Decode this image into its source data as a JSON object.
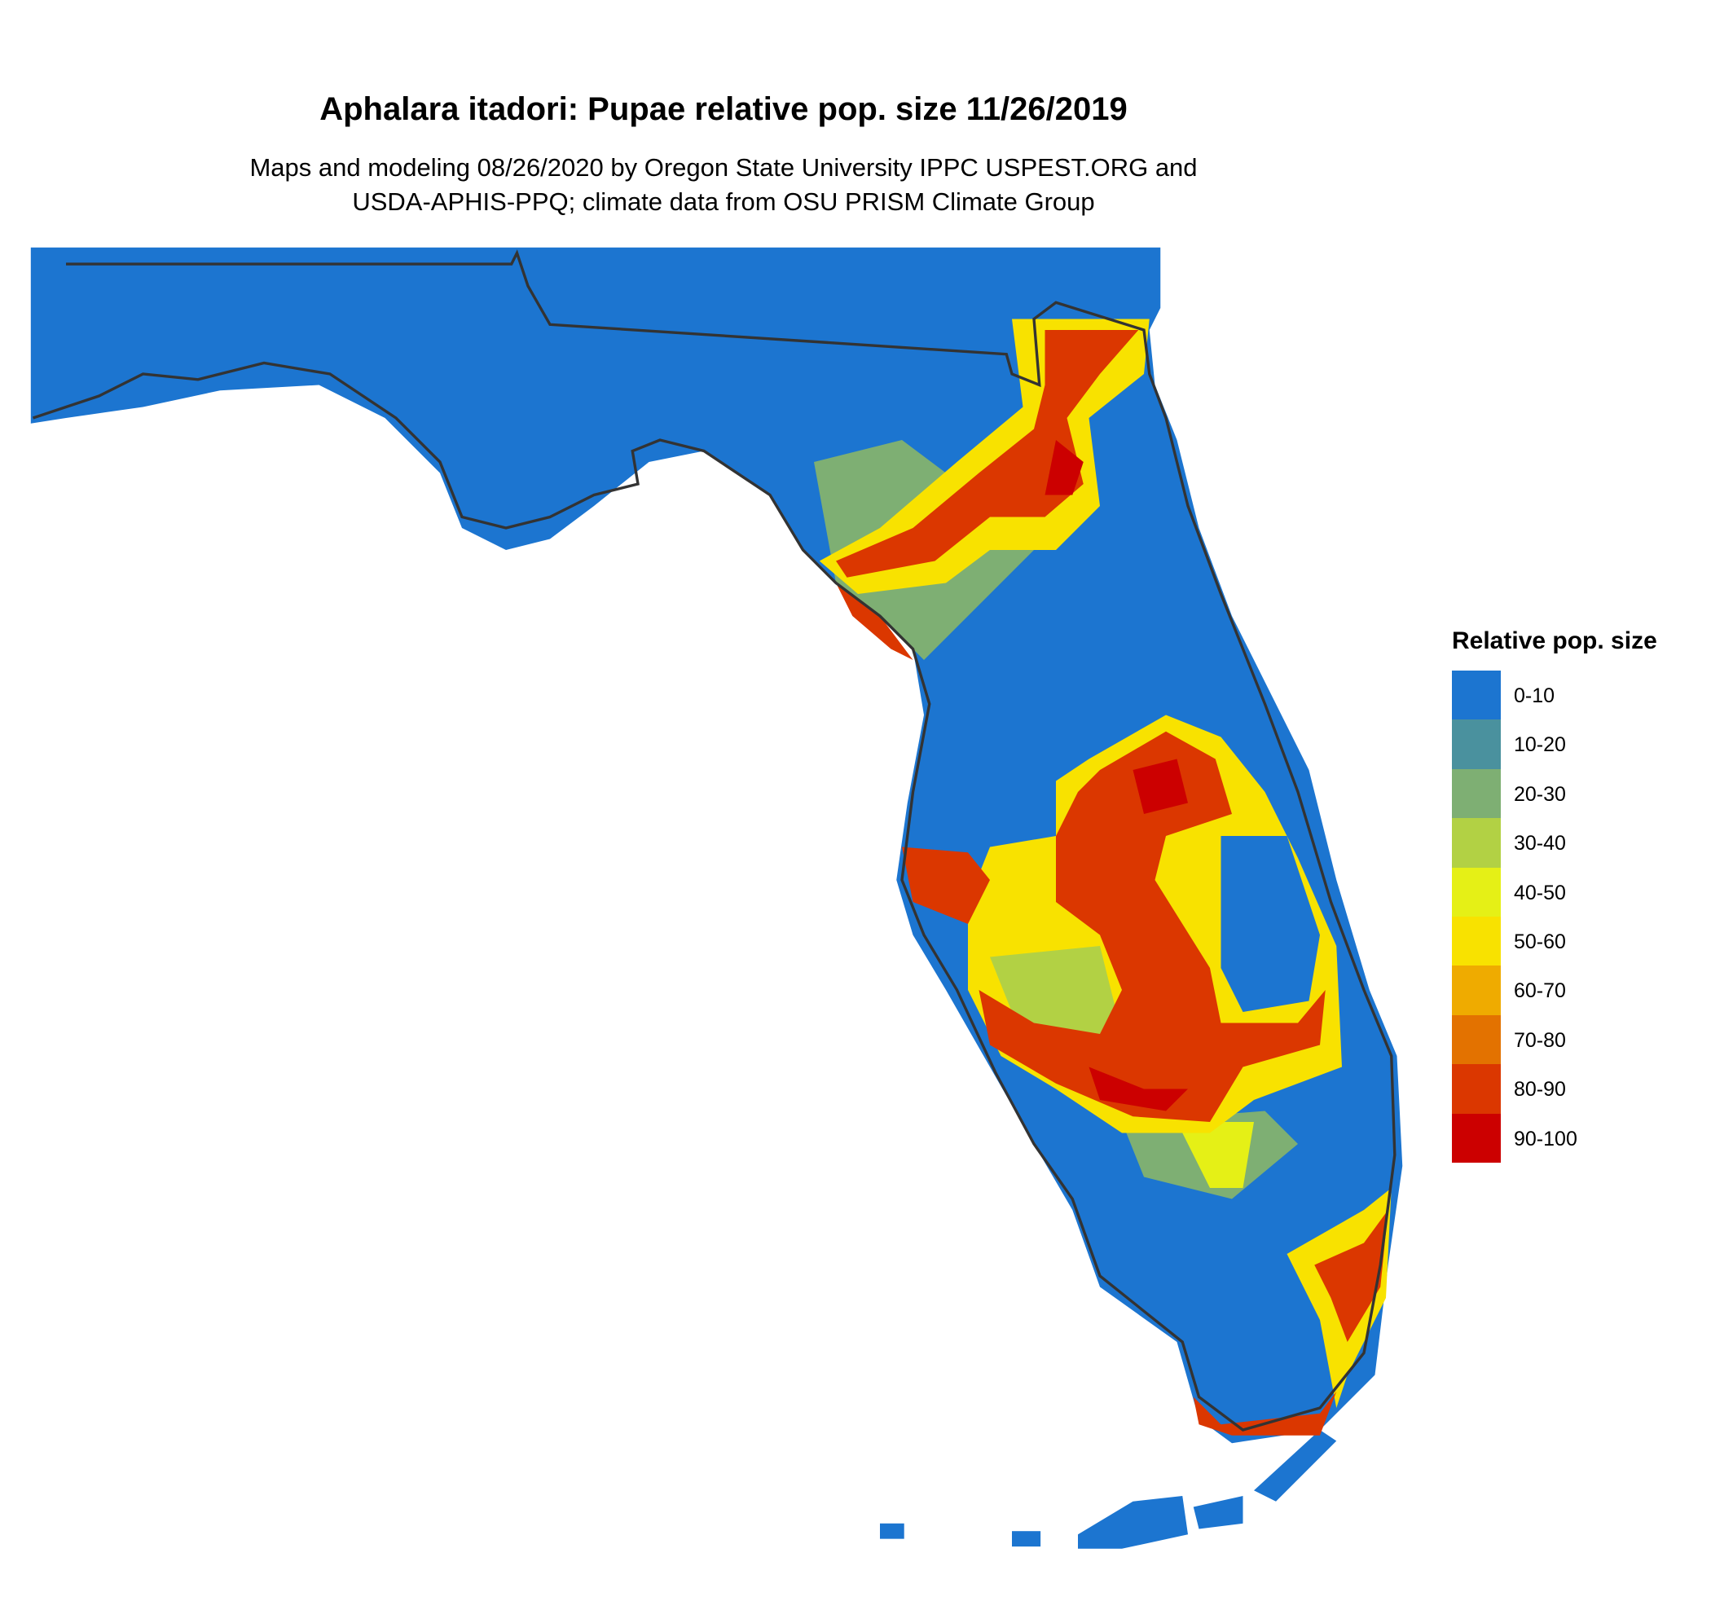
{
  "title": "Aphalara itadori: Pupae relative pop. size 11/26/2019",
  "subtitle_lines": [
    "Maps and modeling 08/26/2020 by Oregon State University IPPC USPEST.ORG and",
    "USDA-APHIS-PPQ; climate data from OSU PRISM Climate Group"
  ],
  "legend": {
    "title": "Relative pop. size",
    "items": [
      {
        "label": "0-10",
        "color": "#1C75D0"
      },
      {
        "label": "10-20",
        "color": "#4A919E"
      },
      {
        "label": "20-30",
        "color": "#7EAF73"
      },
      {
        "label": "30-40",
        "color": "#B2D144"
      },
      {
        "label": "40-50",
        "color": "#E5F016"
      },
      {
        "label": "50-60",
        "color": "#F8E200"
      },
      {
        "label": "60-70",
        "color": "#EFAB00"
      },
      {
        "label": "70-80",
        "color": "#E37200"
      },
      {
        "label": "80-90",
        "color": "#DB3700"
      },
      {
        "label": "90-100",
        "color": "#CC0000"
      }
    ]
  },
  "chart_data": {
    "type": "heatmap",
    "region": "Florida",
    "variable": "Relative pop. size",
    "bins": [
      "0-10",
      "10-20",
      "20-30",
      "30-40",
      "40-50",
      "50-60",
      "60-70",
      "70-80",
      "80-90",
      "90-100"
    ],
    "background_bin": "0-10",
    "hotspots": [
      "north-central Florida",
      "central Florida",
      "southeast coast",
      "southern tip"
    ]
  }
}
